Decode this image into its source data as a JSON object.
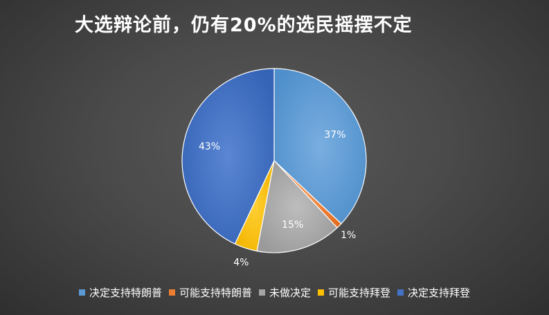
{
  "chart_data": {
    "type": "pie",
    "title": "大选辩论前，仍有20%的选民摇摆不定",
    "categories": [
      "决定支持特朗普",
      "可能支持特朗普",
      "未做决定",
      "可能支持拜登",
      "决定支持拜登"
    ],
    "values": [
      37,
      1,
      15,
      4,
      43
    ],
    "data_labels": [
      "37%",
      "1%",
      "15%",
      "4%",
      "43%"
    ],
    "colors": [
      "#5b9bd5",
      "#ed7d31",
      "#a5a5a5",
      "#ffc000",
      "#4472c4"
    ],
    "legend_position": "bottom"
  }
}
